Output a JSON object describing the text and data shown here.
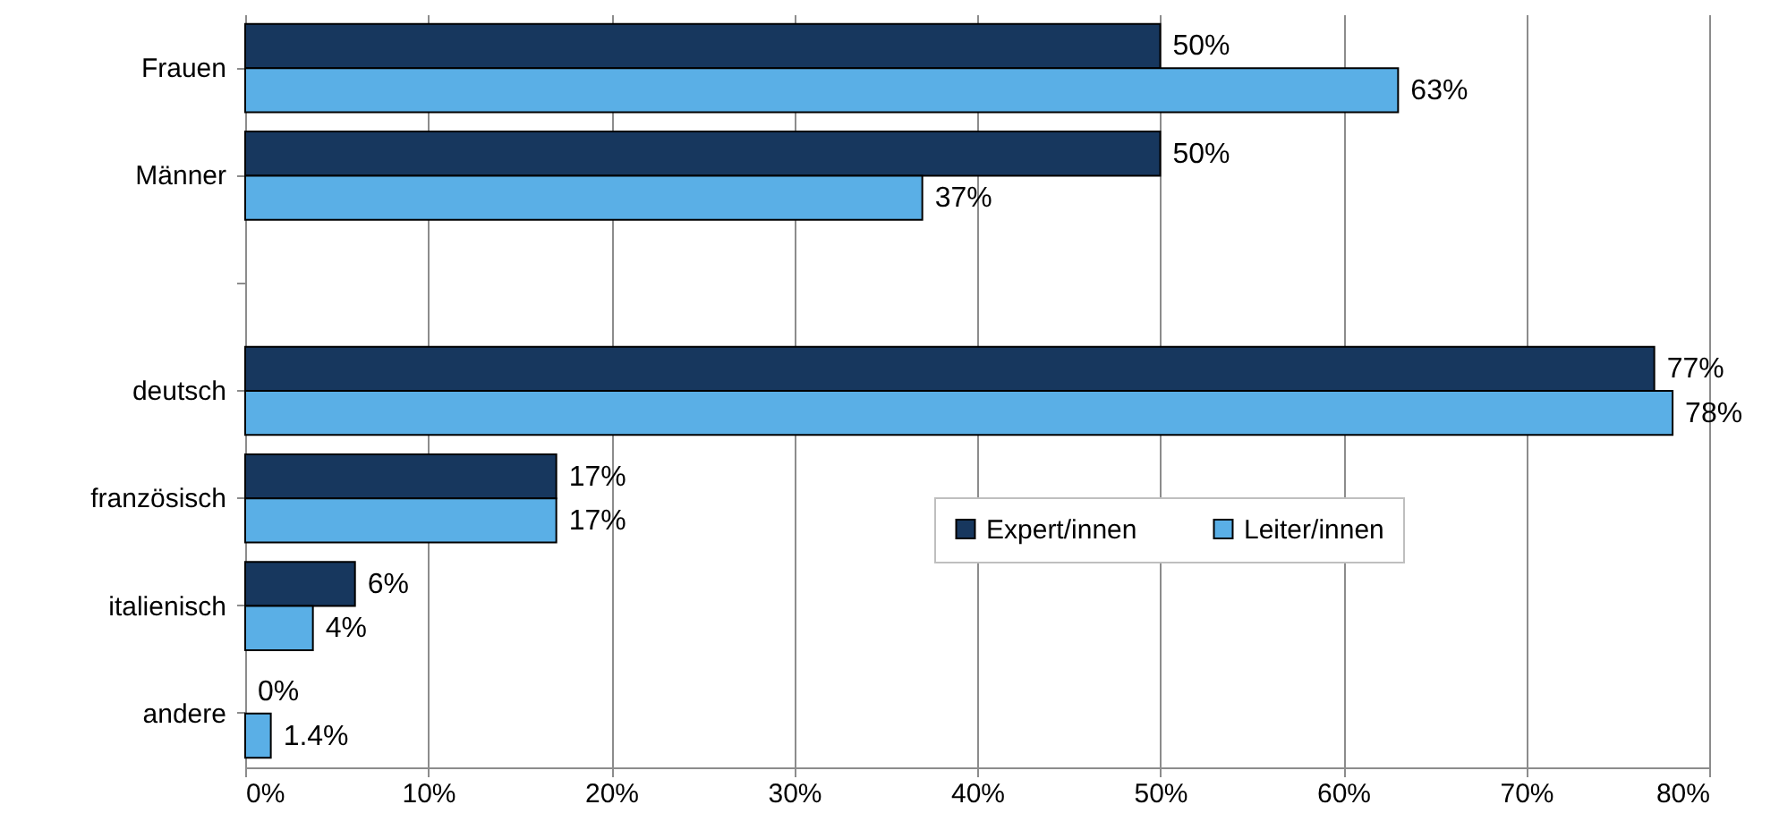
{
  "chart_data": {
    "type": "bar",
    "orientation": "horizontal",
    "categories": [
      "Frauen",
      "Männer",
      null,
      "deutsch",
      "französisch",
      "italienisch",
      "andere"
    ],
    "series": [
      {
        "name": "Expert/innen",
        "color": "#17375e",
        "values": [
          50,
          50,
          null,
          77,
          17,
          6,
          0
        ],
        "value_labels": [
          "50%",
          "50%",
          null,
          "77%",
          "17%",
          "6%",
          "0%"
        ]
      },
      {
        "name": "Leiter/innen",
        "color": "#5aafe6",
        "values": [
          63,
          37,
          null,
          78,
          17,
          3.7,
          1.4
        ],
        "value_labels": [
          "63%",
          "37%",
          null,
          "78%",
          "17%",
          "4%",
          "1.4%"
        ]
      }
    ],
    "xlim": [
      0,
      80
    ],
    "xticks": [
      {
        "value": 0,
        "label": "0%"
      },
      {
        "value": 10,
        "label": "10%"
      },
      {
        "value": 20,
        "label": "20%"
      },
      {
        "value": 30,
        "label": "30%"
      },
      {
        "value": 40,
        "label": "40%"
      },
      {
        "value": 50,
        "label": "50%"
      },
      {
        "value": 60,
        "label": "60%"
      },
      {
        "value": 70,
        "label": "70%"
      },
      {
        "value": 80,
        "label": "80%"
      }
    ],
    "grid": "x",
    "legend": "bottom right"
  }
}
